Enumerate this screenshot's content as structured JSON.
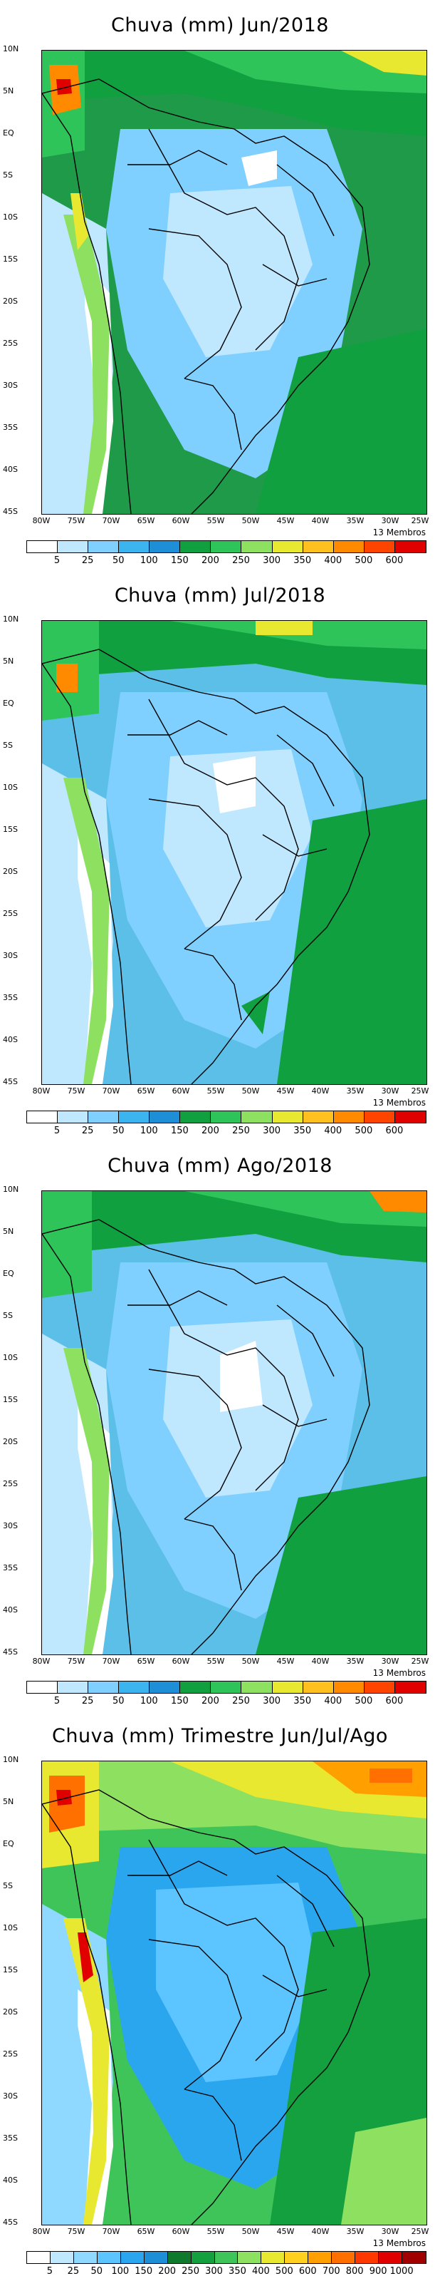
{
  "panels": [
    {
      "title": "Chuva (mm) Jun/2018",
      "members": "13 Membros"
    },
    {
      "title": "Chuva (mm) Jul/2018",
      "members": "13 Membros"
    },
    {
      "title": "Chuva (mm) Ago/2018",
      "members": "13 Membros"
    },
    {
      "title": "Chuva (mm) Trimestre Jun/Jul/Ago",
      "members": "13 Membros"
    }
  ],
  "lat_labels": [
    "10N",
    "5N",
    "EQ",
    "5S",
    "10S",
    "15S",
    "20S",
    "25S",
    "30S",
    "35S",
    "40S",
    "45S"
  ],
  "lon_labels": [
    "80W",
    "75W",
    "70W",
    "65W",
    "60W",
    "55W",
    "50W",
    "45W",
    "40W",
    "35W",
    "30W",
    "25W"
  ],
  "colorbar_monthly": {
    "ticks": [
      "5",
      "25",
      "50",
      "100",
      "150",
      "200",
      "250",
      "300",
      "350",
      "400",
      "500",
      "600"
    ],
    "colors": [
      "#ffffff",
      "#bfe8ff",
      "#7fcfff",
      "#3cb4f0",
      "#1e8fd6",
      "#10a040",
      "#2ec45a",
      "#8ee060",
      "#e8e830",
      "#ffc020",
      "#ff8a00",
      "#ff4400",
      "#e00000"
    ]
  },
  "colorbar_seasonal": {
    "ticks": [
      "5",
      "25",
      "50",
      "100",
      "150",
      "200",
      "250",
      "300",
      "350",
      "400",
      "500",
      "600",
      "700",
      "800",
      "900",
      "1000"
    ],
    "colors": [
      "#ffffff",
      "#bfe8ff",
      "#8fd8ff",
      "#5cc4ff",
      "#2aa6ef",
      "#1e8fd6",
      "#0f7a2e",
      "#15a040",
      "#3fc45a",
      "#8ee060",
      "#e8e830",
      "#ffd020",
      "#ffa000",
      "#ff7000",
      "#ff3800",
      "#e00000",
      "#a00000"
    ]
  }
}
